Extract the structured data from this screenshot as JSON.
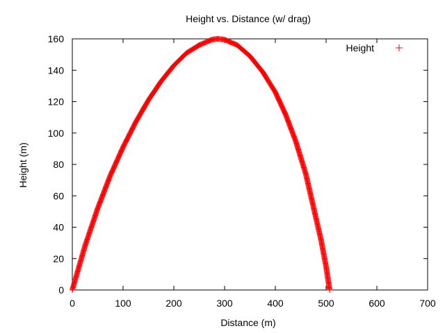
{
  "chart_data": {
    "type": "scatter",
    "title": "Height vs. Distance (w/ drag)",
    "xlabel": "Distance (m)",
    "ylabel": "Height (m)",
    "xlim": [
      0,
      700
    ],
    "ylim": [
      0,
      160
    ],
    "xticks": [
      0,
      100,
      200,
      300,
      400,
      500,
      600,
      700
    ],
    "yticks": [
      0,
      20,
      40,
      60,
      80,
      100,
      120,
      140,
      160
    ],
    "grid": false,
    "legend": {
      "position": "top-right",
      "entries": [
        {
          "label": "Height",
          "marker": "+"
        }
      ]
    },
    "series": [
      {
        "name": "Height",
        "marker": "+",
        "color": "#ff0000",
        "points": [
          [
            0,
            0
          ],
          [
            25,
            28
          ],
          [
            50,
            52
          ],
          [
            75,
            73
          ],
          [
            100,
            91
          ],
          [
            125,
            107
          ],
          [
            150,
            121
          ],
          [
            175,
            133
          ],
          [
            200,
            143
          ],
          [
            225,
            151
          ],
          [
            250,
            156
          ],
          [
            275,
            159.5
          ],
          [
            287,
            160
          ],
          [
            300,
            159.5
          ],
          [
            325,
            156
          ],
          [
            350,
            149
          ],
          [
            375,
            139
          ],
          [
            400,
            126
          ],
          [
            420,
            112
          ],
          [
            440,
            95
          ],
          [
            460,
            74
          ],
          [
            475,
            53
          ],
          [
            490,
            32
          ],
          [
            500,
            15
          ],
          [
            507,
            0
          ]
        ]
      }
    ]
  }
}
